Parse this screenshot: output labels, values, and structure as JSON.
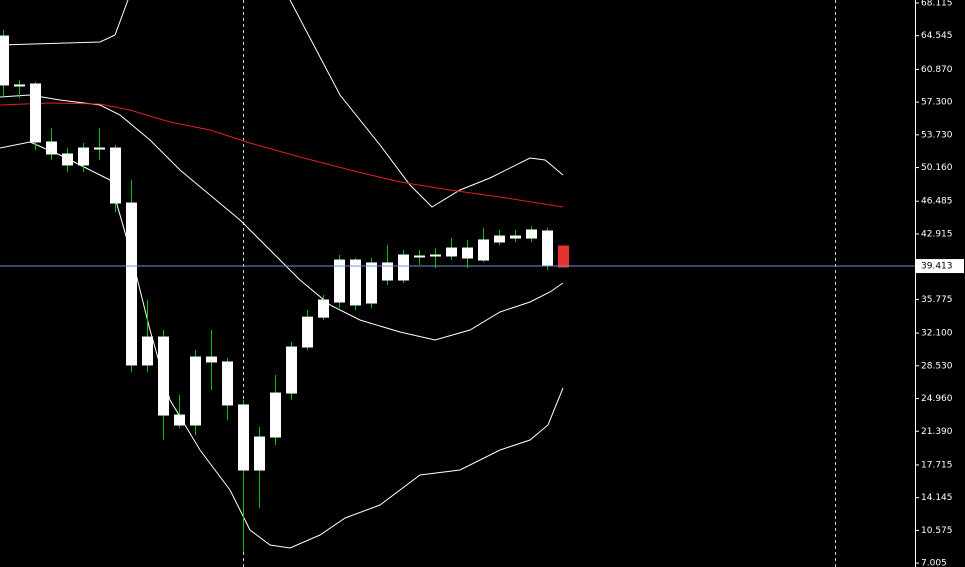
{
  "chart_data": {
    "type": "candlestick",
    "ylim": [
      6.58,
      68.44
    ],
    "xlim": [
      -0.1875,
      57
    ],
    "yticks": [
      68.115,
      64.545,
      {
        "value": 60.87,
        "label": "60.870"
      },
      {
        "value": 57.3,
        "label": "57.300"
      },
      {
        "value": 53.73,
        "label": "53.730"
      },
      {
        "value": 50.16,
        "label": "50.160"
      },
      46.485,
      42.915,
      35.775,
      {
        "value": 32.1,
        "label": "32.100"
      },
      {
        "value": 28.53,
        "label": "28.530"
      },
      {
        "value": 24.96,
        "label": "24.960"
      },
      {
        "value": 21.39,
        "label": "21.390"
      },
      17.715,
      14.145,
      10.575,
      7.005
    ],
    "current_price": 39.413,
    "current_price_color": "#7090d0",
    "wick_color": "#00c800",
    "body_colors": [
      "#ffffff",
      "#ffffff",
      "#ffffff",
      "#ffffff",
      "#ffffff",
      "#ffffff",
      "#ffffff",
      "#ffffff",
      "#ffffff",
      "#ffffff",
      "#ffffff",
      "#ffffff",
      "#ffffff",
      "#ffffff",
      "#ffffff",
      "#ffffff",
      "#ffffff",
      "#ffffff",
      "#ffffff",
      "#ffffff",
      "#ffffff",
      "#ffffff",
      "#ffffff",
      "#ffffff",
      "#ffffff",
      "#ffffff",
      "#ffffff",
      "#ffffff",
      "#ffffff",
      "#ffffff",
      "#ffffff",
      "#ffffff",
      "#ffffff",
      "#ffffff",
      "#ffffff",
      "#e83030"
    ],
    "open": [
      64.51,
      59.17,
      59.28,
      52.95,
      51.64,
      50.44,
      52.29,
      52.29,
      46.29,
      28.62,
      31.67,
      23.16,
      22.07,
      29.49,
      28.95,
      24.26,
      17.16,
      20.76,
      25.56,
      30.58,
      33.84,
      35.49,
      40.07,
      35.38,
      39.75,
      37.89,
      40.4,
      40.51,
      40.51,
      41.38,
      40.07,
      42.04,
      42.47,
      42.47,
      43.24,
      41.6
    ],
    "high": [
      65.17,
      59.71,
      59.49,
      54.47,
      52.29,
      52.84,
      54.47,
      52.62,
      48.8,
      35.71,
      32.44,
      25.35,
      30.26,
      32.44,
      29.38,
      24.8,
      21.85,
      27.53,
      31.13,
      34.61,
      36.26,
      40.62,
      40.29,
      40.29,
      41.71,
      41.17,
      41.17,
      41.38,
      42.47,
      42.26,
      43.57,
      43.35,
      43.35,
      43.78,
      43.57,
      41.6
    ],
    "low": [
      57.75,
      57.75,
      52.07,
      50.98,
      49.67,
      49.67,
      50.98,
      45.31,
      27.85,
      27.85,
      20.44,
      21.75,
      20.98,
      25.89,
      22.62,
      8.22,
      13.02,
      19.89,
      24.8,
      30.26,
      33.53,
      34.84,
      34.61,
      34.84,
      37.35,
      37.56,
      39.53,
      39.2,
      40.07,
      39.2,
      39.86,
      41.71,
      42.04,
      42.04,
      38.98,
      39.31
    ],
    "close": [
      59.17,
      59.06,
      52.95,
      51.64,
      50.44,
      52.29,
      52.18,
      46.29,
      28.62,
      31.67,
      23.16,
      22.07,
      29.49,
      28.95,
      24.26,
      17.16,
      20.76,
      25.56,
      30.58,
      33.84,
      35.71,
      40.07,
      35.17,
      39.75,
      37.89,
      40.62,
      40.51,
      40.62,
      41.38,
      40.29,
      42.26,
      42.69,
      42.69,
      43.35,
      39.53,
      39.31
    ],
    "lines": [
      {
        "color": "#ffffff",
        "x": [
          -0.19,
          6.06,
          7,
          7.81,
          null,
          17.94,
          21.06,
          23.56,
          25.44,
          26.81,
          28.56,
          30.44,
          32.94,
          33.88,
          35
        ],
        "values": [
          63.53,
          63.86,
          64.62,
          68.44,
          null,
          68.44,
          58.08,
          52.62,
          48.26,
          45.86,
          47.71,
          49.02,
          51.2,
          50.98,
          49.35
        ]
      },
      {
        "color": "#ffffff",
        "x": [
          -0.19,
          1.69,
          3.56,
          6.06,
          7.31,
          9.19,
          11.06,
          12.94,
          14.81,
          16.69,
          18.56,
          20.44,
          22.31,
          24.81,
          27,
          29.19,
          31.06,
          32.94,
          34.19,
          35
        ],
        "values": [
          57.86,
          58.08,
          57.53,
          56.98,
          55.89,
          53.17,
          49.89,
          47.17,
          44.44,
          41.17,
          37.89,
          35.17,
          33.53,
          32.22,
          31.35,
          32.44,
          34.4,
          35.49,
          36.58,
          37.56
        ]
      },
      {
        "color": "#ffffff",
        "x": [
          -0.19,
          1.69,
          3.56,
          5.44,
          6.69,
          7.94,
          9.19,
          10.44,
          12.31,
          14.19,
          15.44,
          16.69,
          17.94,
          19.81,
          21.38,
          23.56,
          26.06,
          28.56,
          31.06,
          32.94,
          34.06,
          35
        ],
        "values": [
          52.29,
          52.95,
          51.53,
          49.89,
          48.8,
          41.17,
          32.44,
          24.8,
          19.35,
          14.98,
          10.62,
          8.98,
          8.65,
          10.07,
          11.93,
          13.34,
          16.62,
          17.16,
          19.35,
          20.44,
          22.07,
          26.11
        ]
      },
      {
        "color": "#e02020",
        "x": [
          -0.19,
          2.94,
          6.06,
          7.94,
          10.44,
          12.94,
          15.44,
          18.56,
          21.69,
          24.81,
          27.94,
          31.06,
          35
        ],
        "values": [
          56.98,
          57.2,
          57.09,
          56.44,
          55.13,
          54.26,
          52.84,
          51.31,
          49.89,
          48.58,
          47.71,
          46.95,
          45.86
        ]
      }
    ]
  }
}
